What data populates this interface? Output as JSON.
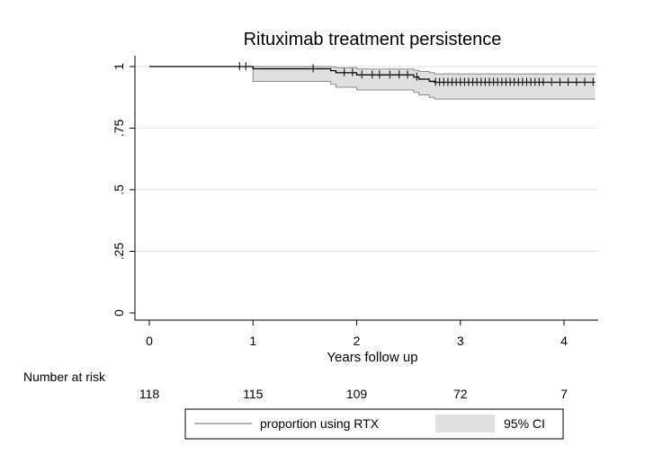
{
  "chart_data": {
    "type": "line",
    "title": "Rituximab treatment persistence",
    "xlabel": "Years follow up",
    "ylabel": "",
    "xlim": [
      0,
      4.3
    ],
    "ylim": [
      0,
      1
    ],
    "x_ticks": [
      0,
      1,
      2,
      3,
      4
    ],
    "x_tick_labels": [
      "0",
      "1",
      "2",
      "3",
      "4"
    ],
    "y_ticks": [
      0,
      0.25,
      0.5,
      0.75,
      1
    ],
    "y_tick_labels": [
      "0",
      ".25",
      ".5",
      ".75",
      "1"
    ],
    "grid": "horizontal",
    "legend_position": "bottom",
    "series": [
      {
        "name": "proportion using RTX",
        "kind": "step",
        "color": "#000000",
        "x": [
          0,
          1.0,
          1.75,
          1.8,
          2.0,
          2.55,
          2.6,
          2.7,
          2.75,
          4.3
        ],
        "y": [
          1.0,
          0.991,
          0.983,
          0.975,
          0.966,
          0.957,
          0.949,
          0.94,
          0.936,
          0.936
        ],
        "censor_times": [
          0.87,
          0.93,
          1.58,
          1.88,
          1.96,
          2.05,
          2.15,
          2.22,
          2.32,
          2.41,
          2.49,
          2.58,
          2.76,
          2.8,
          2.84,
          2.88,
          2.92,
          2.96,
          3.0,
          3.04,
          3.08,
          3.12,
          3.16,
          3.2,
          3.24,
          3.28,
          3.32,
          3.36,
          3.4,
          3.44,
          3.48,
          3.52,
          3.56,
          3.6,
          3.64,
          3.68,
          3.72,
          3.76,
          3.8,
          3.88,
          3.96,
          4.04,
          4.12,
          4.2,
          4.28
        ]
      },
      {
        "name": "95% CI",
        "kind": "band",
        "color": "#e0e0e0",
        "x": [
          0,
          1.0,
          1.75,
          1.8,
          2.0,
          2.55,
          2.6,
          2.7,
          2.75,
          4.3
        ],
        "lower": [
          1.0,
          0.94,
          0.928,
          0.916,
          0.905,
          0.895,
          0.885,
          0.875,
          0.868,
          0.868
        ],
        "upper": [
          1.0,
          1.0,
          0.998,
          0.995,
          0.99,
          0.985,
          0.98,
          0.975,
          0.97,
          0.97
        ]
      }
    ],
    "number_at_risk": {
      "label": "Number at risk",
      "x": [
        0,
        1,
        2,
        3,
        4
      ],
      "values": [
        "118",
        "115",
        "109",
        "72",
        "7"
      ]
    },
    "legend": {
      "items": [
        {
          "label": "proportion using RTX",
          "symbol": "line",
          "color": "#808080"
        },
        {
          "label": "95% CI",
          "symbol": "box",
          "color": "#e0e0e0"
        }
      ]
    }
  }
}
